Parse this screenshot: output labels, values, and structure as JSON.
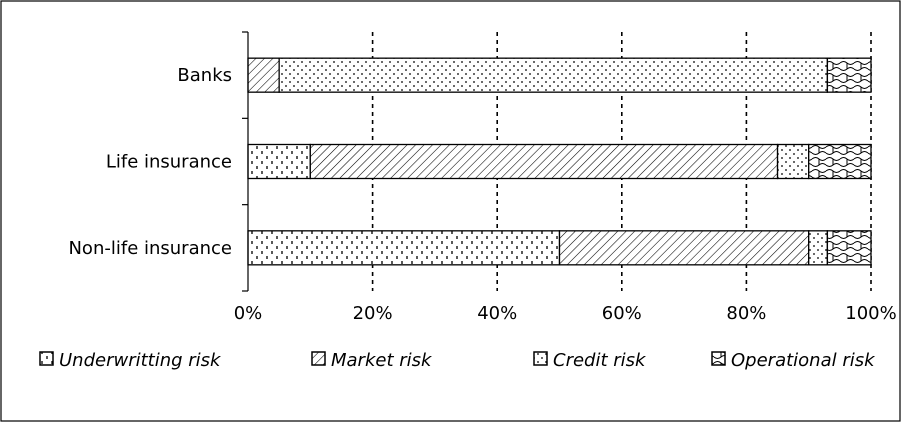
{
  "chart_data": {
    "type": "bar",
    "orientation": "horizontal",
    "stacked": true,
    "normalized": true,
    "categories": [
      "Banks",
      "Life insurance",
      "Non-life insurance"
    ],
    "series": [
      {
        "name": "Underwritting risk",
        "values": [
          0,
          10,
          50
        ]
      },
      {
        "name": "Market risk",
        "values": [
          5,
          75,
          40
        ]
      },
      {
        "name": "Credit risk",
        "values": [
          88,
          5,
          3
        ]
      },
      {
        "name": "Operational risk",
        "values": [
          7,
          10,
          7
        ]
      }
    ],
    "xlim": [
      0,
      100
    ],
    "x_ticks": [
      "0%",
      "20%",
      "40%",
      "60%",
      "80%",
      "100%"
    ],
    "x_tick_values": [
      0,
      20,
      40,
      60,
      80,
      100
    ],
    "grid": "vertical dashed",
    "legend_position": "bottom",
    "legend_style": "italic"
  }
}
